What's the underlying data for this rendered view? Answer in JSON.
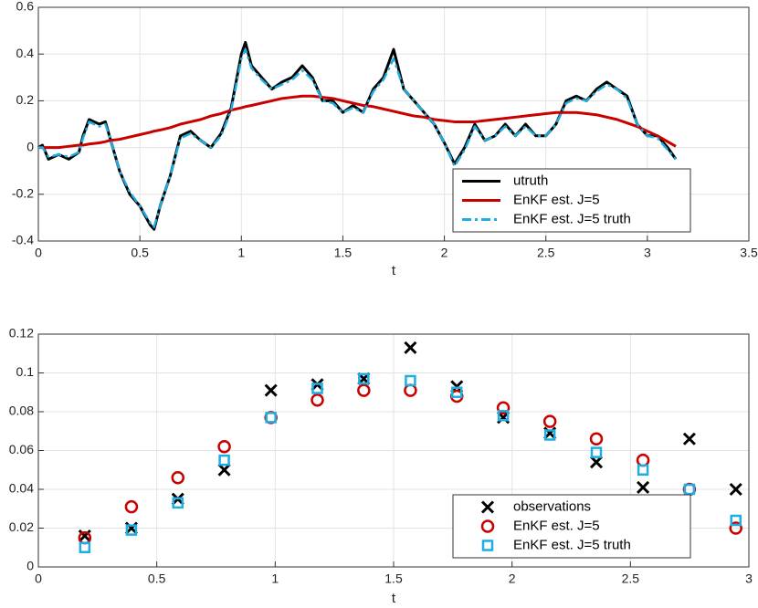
{
  "chart_data": [
    {
      "type": "line",
      "xlabel": "t",
      "x": [
        0,
        0.02,
        0.05,
        0.1,
        0.15,
        0.2,
        0.22,
        0.25,
        0.3,
        0.33,
        0.35,
        0.4,
        0.45,
        0.5,
        0.55,
        0.57,
        0.6,
        0.65,
        0.7,
        0.75,
        0.8,
        0.85,
        0.9,
        0.95,
        1.0,
        1.02,
        1.05,
        1.1,
        1.15,
        1.2,
        1.25,
        1.3,
        1.35,
        1.4,
        1.45,
        1.5,
        1.55,
        1.6,
        1.65,
        1.7,
        1.75,
        1.8,
        1.85,
        1.9,
        1.95,
        2.0,
        2.05,
        2.1,
        2.15,
        2.2,
        2.25,
        2.3,
        2.35,
        2.4,
        2.45,
        2.5,
        2.55,
        2.6,
        2.65,
        2.7,
        2.75,
        2.8,
        2.85,
        2.9,
        2.95,
        3.0,
        3.05,
        3.1,
        3.14
      ],
      "series": [
        {
          "name": "utruth",
          "color": "#000000",
          "linestyle": "solid",
          "values": [
            0,
            0.01,
            -0.05,
            -0.03,
            -0.05,
            -0.02,
            0.05,
            0.12,
            0.1,
            0.11,
            0.05,
            -0.1,
            -0.2,
            -0.25,
            -0.33,
            -0.35,
            -0.25,
            -0.12,
            0.05,
            0.07,
            0.03,
            0.0,
            0.06,
            0.17,
            0.4,
            0.45,
            0.35,
            0.3,
            0.25,
            0.28,
            0.3,
            0.35,
            0.3,
            0.2,
            0.2,
            0.15,
            0.18,
            0.15,
            0.25,
            0.3,
            0.42,
            0.25,
            0.2,
            0.15,
            0.1,
            0.02,
            -0.07,
            0.0,
            0.1,
            0.03,
            0.05,
            0.1,
            0.05,
            0.1,
            0.05,
            0.05,
            0.1,
            0.2,
            0.22,
            0.2,
            0.25,
            0.28,
            0.25,
            0.22,
            0.1,
            0.05,
            0.05,
            0.0,
            -0.05
          ]
        },
        {
          "name": "EnKF est. J=5",
          "color": "#c80000",
          "linestyle": "solid",
          "values": [
            0,
            0,
            0,
            0,
            0.005,
            0.01,
            0.01,
            0.015,
            0.02,
            0.025,
            0.03,
            0.035,
            0.045,
            0.055,
            0.065,
            0.07,
            0.075,
            0.085,
            0.1,
            0.11,
            0.12,
            0.135,
            0.145,
            0.16,
            0.17,
            0.175,
            0.18,
            0.19,
            0.2,
            0.21,
            0.215,
            0.22,
            0.22,
            0.215,
            0.21,
            0.2,
            0.19,
            0.18,
            0.175,
            0.165,
            0.155,
            0.145,
            0.135,
            0.13,
            0.12,
            0.115,
            0.11,
            0.11,
            0.11,
            0.115,
            0.12,
            0.125,
            0.13,
            0.135,
            0.14,
            0.145,
            0.15,
            0.15,
            0.15,
            0.145,
            0.14,
            0.13,
            0.12,
            0.105,
            0.09,
            0.07,
            0.05,
            0.025,
            0.005
          ]
        },
        {
          "name": "EnKF est. J=5 truth",
          "color": "#1eaee2",
          "linestyle": "dashdot",
          "values": [
            0,
            0.0,
            -0.04,
            -0.03,
            -0.04,
            -0.02,
            0.04,
            0.11,
            0.09,
            0.1,
            0.05,
            -0.1,
            -0.19,
            -0.25,
            -0.32,
            -0.34,
            -0.25,
            -0.12,
            0.04,
            0.06,
            0.03,
            0.0,
            0.05,
            0.16,
            0.38,
            0.42,
            0.34,
            0.29,
            0.25,
            0.27,
            0.29,
            0.33,
            0.29,
            0.2,
            0.19,
            0.15,
            0.17,
            0.15,
            0.24,
            0.29,
            0.38,
            0.25,
            0.2,
            0.15,
            0.1,
            0.02,
            -0.08,
            -0.01,
            0.09,
            0.03,
            0.05,
            0.09,
            0.05,
            0.09,
            0.05,
            0.05,
            0.1,
            0.19,
            0.21,
            0.2,
            0.24,
            0.27,
            0.25,
            0.21,
            0.1,
            0.05,
            0.04,
            -0.01,
            -0.05
          ]
        }
      ],
      "xlim": [
        0,
        3.5
      ],
      "xticks": [
        0,
        0.5,
        1,
        1.5,
        2,
        2.5,
        3,
        3.5
      ],
      "ylim": [
        -0.4,
        0.6
      ],
      "yticks": [
        -0.4,
        -0.2,
        0,
        0.2,
        0.4,
        0.6
      ],
      "grid": true,
      "legend_loc": "lower right"
    },
    {
      "type": "scatter",
      "xlabel": "t",
      "x": [
        0.196,
        0.393,
        0.589,
        0.785,
        0.982,
        1.178,
        1.374,
        1.571,
        1.767,
        1.963,
        2.16,
        2.356,
        2.553,
        2.749,
        2.945
      ],
      "series": [
        {
          "name": "observations",
          "color": "#000000",
          "marker": "x",
          "values": [
            0.016,
            0.02,
            0.035,
            0.05,
            0.091,
            0.094,
            0.097,
            0.113,
            0.093,
            0.077,
            0.069,
            0.054,
            0.041,
            0.066,
            0.04
          ]
        },
        {
          "name": "EnKF est. J=5",
          "color": "#c80000",
          "marker": "o",
          "values": [
            0.015,
            0.031,
            0.046,
            0.062,
            0.077,
            0.086,
            0.091,
            0.091,
            0.088,
            0.082,
            0.075,
            0.066,
            0.055,
            0.04,
            0.02
          ]
        },
        {
          "name": "EnKF est. J=5 truth",
          "color": "#1eaee2",
          "marker": "s",
          "values": [
            0.01,
            0.019,
            0.033,
            0.055,
            0.077,
            0.092,
            0.097,
            0.096,
            0.09,
            0.078,
            0.068,
            0.059,
            0.05,
            0.04,
            0.024
          ]
        }
      ],
      "xlim": [
        0,
        3
      ],
      "xticks": [
        0,
        0.5,
        1,
        1.5,
        2,
        2.5,
        3
      ],
      "ylim": [
        0,
        0.12
      ],
      "yticks": [
        0,
        0.02,
        0.04,
        0.06,
        0.08,
        0.1,
        0.12
      ],
      "grid": true,
      "legend_loc": "lower right"
    }
  ]
}
